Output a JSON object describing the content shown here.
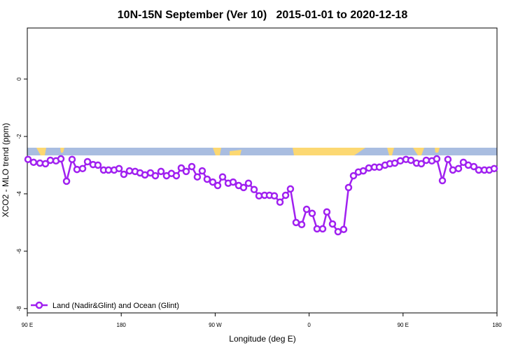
{
  "chart_data": {
    "type": "line",
    "title": "10N-15N September (Ver 10)   2015-01-01 to 2020-12-18",
    "x_label": "Longitude (deg E)",
    "y_label": "XCO2 - MLO trend (ppm)",
    "xlim": [
      90,
      540
    ],
    "xticks": [
      {
        "value": 90,
        "label": "90 E"
      },
      180,
      {
        "value": 270,
        "label": "90 W"
      },
      {
        "value": 360,
        "label": "0"
      },
      {
        "value": 450,
        "label": "90 E"
      },
      {
        "value": 540,
        "label": "180"
      }
    ],
    "ylim": [
      -8.15,
      1.78
    ],
    "yticks": [
      0,
      -2,
      -4,
      -6,
      -8
    ],
    "legend": "bottom-left",
    "series": [
      {
        "name": "Land (Nadir&Glint) and Ocean (Glint)",
        "color": "#a020f0",
        "x": [
          90.7,
          96.0,
          102.1,
          107.4,
          112.1,
          117.5,
          122.2,
          127.6,
          132.9,
          137.6,
          143.0,
          147.7,
          153.0,
          157.7,
          163.1,
          167.8,
          173.2,
          177.9,
          182.5,
          187.9,
          193.3,
          198.0,
          202.7,
          208.0,
          212.7,
          218.1,
          223.4,
          228.1,
          232.8,
          237.5,
          242.2,
          247.6,
          252.9,
          257.6,
          262.3,
          267.7,
          272.4,
          277.1,
          282.5,
          287.2,
          292.5,
          297.2,
          301.9,
          307.3,
          312.0,
          317.3,
          322.0,
          326.7,
          332.1,
          337.5,
          342.1,
          347.5,
          352.9,
          357.6,
          362.9,
          367.6,
          373.0,
          377.0,
          382.4,
          387.7,
          393.1,
          397.8,
          402.5,
          407.2,
          411.9,
          417.2,
          422.6,
          427.3,
          432.7,
          437.4,
          442.1,
          447.4,
          452.8,
          457.5,
          462.9,
          467.5,
          472.2,
          477.6,
          482.3,
          487.7,
          493.0,
          497.7,
          503.1,
          507.8,
          512.5,
          517.8,
          522.5,
          527.9,
          532.6,
          537.3
        ],
        "values": [
          -2.8,
          -2.9,
          -2.93,
          -2.95,
          -2.83,
          -2.85,
          -2.78,
          -3.56,
          -2.8,
          -3.15,
          -3.12,
          -2.88,
          -2.98,
          -3.0,
          -3.17,
          -3.17,
          -3.17,
          -3.12,
          -3.32,
          -3.2,
          -3.22,
          -3.27,
          -3.34,
          -3.27,
          -3.37,
          -3.22,
          -3.37,
          -3.29,
          -3.37,
          -3.1,
          -3.22,
          -3.05,
          -3.41,
          -3.2,
          -3.49,
          -3.59,
          -3.71,
          -3.41,
          -3.63,
          -3.59,
          -3.71,
          -3.78,
          -3.63,
          -3.85,
          -4.07,
          -4.05,
          -4.05,
          -4.07,
          -4.29,
          -4.05,
          -3.83,
          -5.0,
          -5.07,
          -4.54,
          -4.68,
          -5.22,
          -5.22,
          -4.63,
          -5.05,
          -5.32,
          -5.24,
          -3.78,
          -3.37,
          -3.24,
          -3.2,
          -3.1,
          -3.07,
          -3.07,
          -3.0,
          -2.95,
          -2.93,
          -2.85,
          -2.8,
          -2.83,
          -2.93,
          -2.95,
          -2.83,
          -2.85,
          -2.78,
          -3.54,
          -2.8,
          -3.17,
          -3.12,
          -2.9,
          -3.0,
          -3.05,
          -3.17,
          -3.17,
          -3.17,
          -3.12
        ]
      }
    ]
  }
}
